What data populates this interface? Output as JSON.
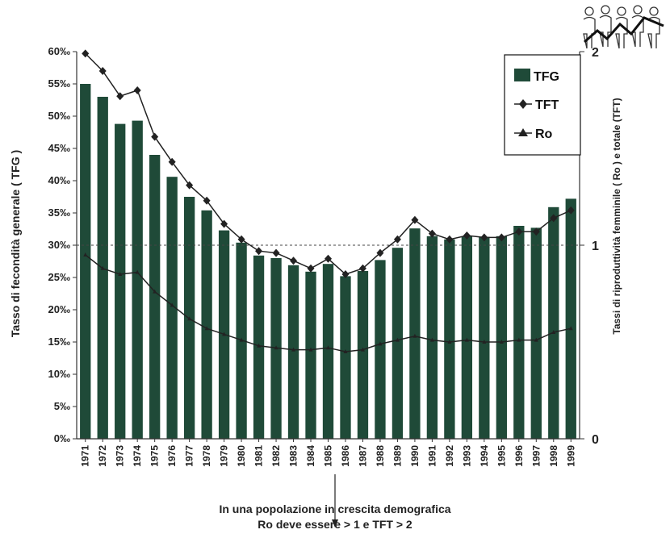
{
  "colors": {
    "bar": "#1f4a38",
    "line": "#222222",
    "axis": "#333333"
  },
  "chart_data": {
    "type": "bar",
    "categories": [
      "1971",
      "1972",
      "1973",
      "1974",
      "1975",
      "1976",
      "1977",
      "1978",
      "1979",
      "1980",
      "1981",
      "1982",
      "1983",
      "1984",
      "1985",
      "1986",
      "1987",
      "1988",
      "1989",
      "1990",
      "1991",
      "1992",
      "1993",
      "1994",
      "1995",
      "1996",
      "1997",
      "1998",
      "1999"
    ],
    "y_left": {
      "label": "Tasso di fecondità generale  ( TFG )",
      "ylim": [
        0,
        60
      ],
      "ticks": [
        0,
        5,
        10,
        15,
        20,
        25,
        30,
        35,
        40,
        45,
        50,
        55,
        60
      ],
      "tick_labels": [
        "0‰",
        "5‰",
        "10‰",
        "15‰",
        "20‰",
        "25‰",
        "30‰",
        "35‰",
        "40‰",
        "45‰",
        "50‰",
        "55‰",
        "60‰"
      ]
    },
    "y_right": {
      "label": "Tassi  di riproduttività femminile  ( Ro )  e totale  (TFT)",
      "ylim": [
        0,
        2
      ],
      "ticks": [
        0,
        1,
        2
      ],
      "tick_labels": [
        "0",
        "1",
        "2"
      ]
    },
    "reference_line": {
      "axis": "right",
      "value": 1
    },
    "series": [
      {
        "name": "TFG",
        "type": "bar",
        "axis": "left",
        "values": [
          55,
          53,
          48.8,
          49.3,
          44,
          40.6,
          37.5,
          35.4,
          32.3,
          30.4,
          28.4,
          28,
          26.9,
          25.9,
          27.1,
          25.2,
          26,
          27.7,
          29.6,
          32.6,
          31.4,
          30.9,
          31.4,
          31.3,
          31.4,
          33,
          32.7,
          35.9,
          37.2
        ]
      },
      {
        "name": "TFT",
        "type": "line",
        "marker": "diamond",
        "axis": "right",
        "values": [
          1.99,
          1.9,
          1.77,
          1.8,
          1.56,
          1.43,
          1.31,
          1.23,
          1.11,
          1.03,
          0.97,
          0.96,
          0.92,
          0.88,
          0.93,
          0.85,
          0.88,
          0.96,
          1.03,
          1.13,
          1.06,
          1.03,
          1.05,
          1.04,
          1.04,
          1.07,
          1.07,
          1.14,
          1.18
        ]
      },
      {
        "name": "Ro",
        "type": "line",
        "marker": "triangle",
        "axis": "right",
        "values": [
          0.95,
          0.88,
          0.85,
          0.86,
          0.76,
          0.69,
          0.62,
          0.57,
          0.54,
          0.51,
          0.48,
          0.47,
          0.46,
          0.46,
          0.47,
          0.45,
          0.46,
          0.49,
          0.51,
          0.53,
          0.51,
          0.5,
          0.51,
          0.5,
          0.5,
          0.51,
          0.51,
          0.55,
          0.57
        ]
      }
    ],
    "legend": {
      "position": "top-right",
      "entries": [
        "TFG",
        "TFT",
        "Ro"
      ]
    },
    "grid": false
  },
  "notes": {
    "line1": "In una popolazione in crescita demografica",
    "line2": "Ro deve essere > 1 e TFT > 2"
  },
  "logo": {
    "icon": "people-growth-logo-icon"
  }
}
